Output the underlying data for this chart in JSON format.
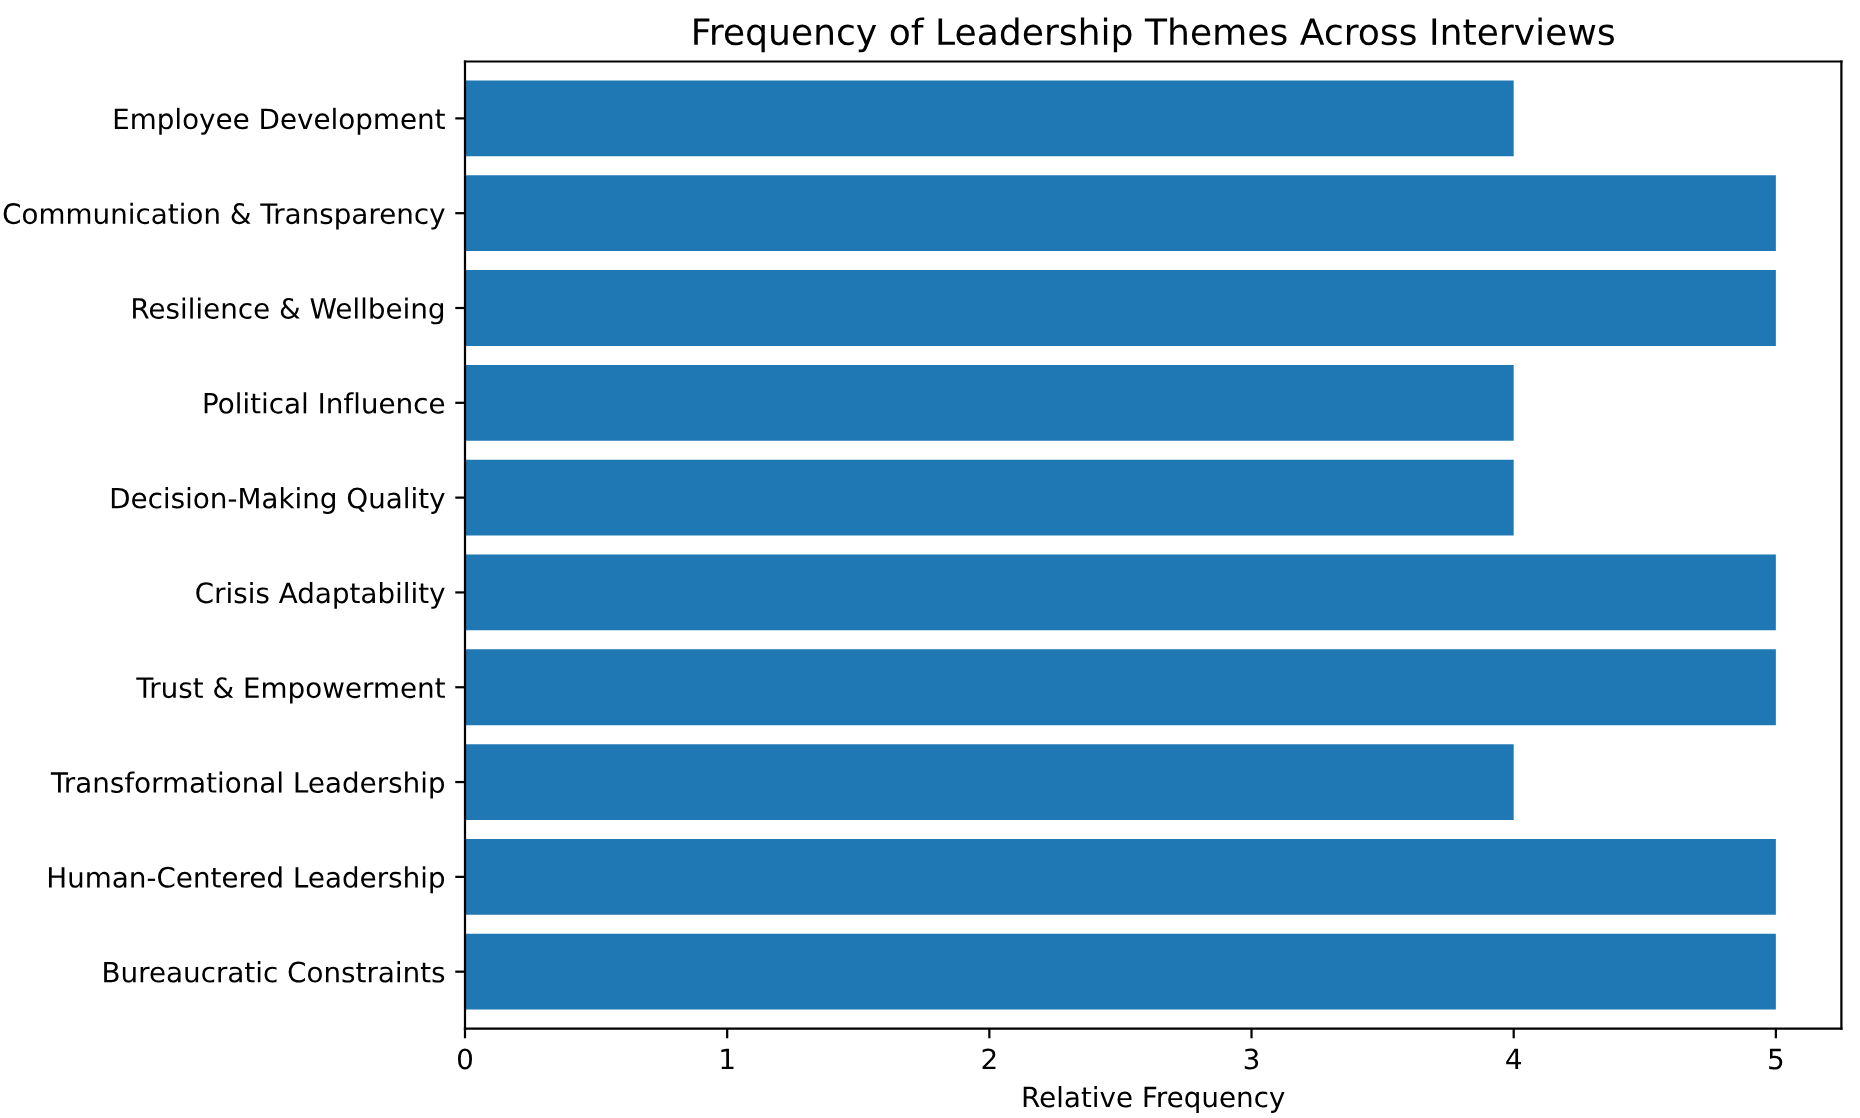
{
  "chart_data": {
    "type": "bar",
    "orientation": "horizontal",
    "title": "Frequency of Leadership Themes Across Interviews",
    "xlabel": "Relative Frequency",
    "categories": [
      "Employee Development",
      "Communication & Transparency",
      "Resilience & Wellbeing",
      "Political Influence",
      "Decision-Making Quality",
      "Crisis Adaptability",
      "Trust & Empowerment",
      "Transformational Leadership",
      "Human-Centered Leadership",
      "Bureaucratic Constraints"
    ],
    "values": [
      4,
      5,
      5,
      4,
      4,
      5,
      5,
      4,
      5,
      5
    ],
    "color": "#1f77b4",
    "xlim": [
      0,
      5.25
    ],
    "xticks": [
      0,
      1,
      2,
      3,
      4,
      5
    ],
    "grid": false,
    "legend": false
  }
}
